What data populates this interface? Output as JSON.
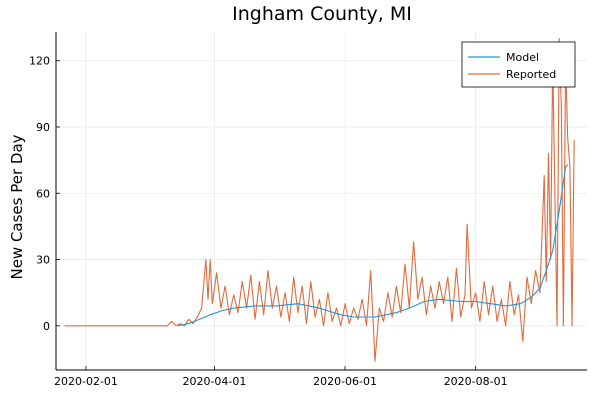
{
  "chart_data": {
    "type": "line",
    "title": "Ingham County, MI",
    "xlabel": "",
    "ylabel": "New Cases Per Day",
    "x_axis": {
      "type": "date",
      "range": [
        "2020-01-18",
        "2020-09-22"
      ],
      "ticks": [
        "2020-02-01",
        "2020-04-01",
        "2020-06-01",
        "2020-08-01"
      ]
    },
    "y_axis": {
      "range": [
        -20,
        133
      ],
      "ticks": [
        0,
        30,
        60,
        90,
        120
      ]
    },
    "grid": true,
    "legend": {
      "position": "top-right"
    },
    "series": [
      {
        "name": "Model",
        "color": "#1f97d6",
        "points": [
          [
            "2020-03-15",
            0
          ],
          [
            "2020-03-20",
            1
          ],
          [
            "2020-03-25",
            3
          ],
          [
            "2020-03-30",
            5
          ],
          [
            "2020-04-05",
            7
          ],
          [
            "2020-04-10",
            8
          ],
          [
            "2020-04-20",
            9
          ],
          [
            "2020-04-30",
            9
          ],
          [
            "2020-05-10",
            10
          ],
          [
            "2020-05-20",
            8
          ],
          [
            "2020-05-30",
            5
          ],
          [
            "2020-06-05",
            4
          ],
          [
            "2020-06-15",
            4
          ],
          [
            "2020-06-25",
            6
          ],
          [
            "2020-07-01",
            8
          ],
          [
            "2020-07-08",
            11
          ],
          [
            "2020-07-15",
            12
          ],
          [
            "2020-07-25",
            11
          ],
          [
            "2020-08-01",
            11
          ],
          [
            "2020-08-08",
            10
          ],
          [
            "2020-08-15",
            9
          ],
          [
            "2020-08-22",
            10
          ],
          [
            "2020-08-27",
            13
          ],
          [
            "2020-08-31",
            17
          ],
          [
            "2020-09-03",
            25
          ],
          [
            "2020-09-06",
            34
          ],
          [
            "2020-09-09",
            52
          ],
          [
            "2020-09-12",
            72
          ],
          [
            "2020-09-13",
            73
          ]
        ]
      },
      {
        "name": "Reported",
        "color": "#e26a3b",
        "points": [
          [
            "2020-01-22",
            0
          ],
          [
            "2020-03-10",
            0
          ],
          [
            "2020-03-12",
            2
          ],
          [
            "2020-03-14",
            0
          ],
          [
            "2020-03-16",
            1
          ],
          [
            "2020-03-18",
            0
          ],
          [
            "2020-03-20",
            3
          ],
          [
            "2020-03-22",
            1
          ],
          [
            "2020-03-24",
            4
          ],
          [
            "2020-03-26",
            8
          ],
          [
            "2020-03-28",
            30
          ],
          [
            "2020-03-29",
            12
          ],
          [
            "2020-03-30",
            30
          ],
          [
            "2020-03-31",
            10
          ],
          [
            "2020-04-02",
            24
          ],
          [
            "2020-04-04",
            8
          ],
          [
            "2020-04-06",
            18
          ],
          [
            "2020-04-08",
            5
          ],
          [
            "2020-04-10",
            14
          ],
          [
            "2020-04-12",
            6
          ],
          [
            "2020-04-14",
            20
          ],
          [
            "2020-04-16",
            8
          ],
          [
            "2020-04-18",
            23
          ],
          [
            "2020-04-20",
            3
          ],
          [
            "2020-04-22",
            20
          ],
          [
            "2020-04-24",
            5
          ],
          [
            "2020-04-26",
            25
          ],
          [
            "2020-04-28",
            8
          ],
          [
            "2020-04-30",
            18
          ],
          [
            "2020-05-02",
            4
          ],
          [
            "2020-05-04",
            15
          ],
          [
            "2020-05-06",
            2
          ],
          [
            "2020-05-08",
            22
          ],
          [
            "2020-05-10",
            6
          ],
          [
            "2020-05-12",
            18
          ],
          [
            "2020-05-14",
            1
          ],
          [
            "2020-05-16",
            20
          ],
          [
            "2020-05-18",
            4
          ],
          [
            "2020-05-20",
            12
          ],
          [
            "2020-05-22",
            0
          ],
          [
            "2020-05-24",
            15
          ],
          [
            "2020-05-26",
            2
          ],
          [
            "2020-05-28",
            8
          ],
          [
            "2020-05-30",
            0
          ],
          [
            "2020-06-01",
            10
          ],
          [
            "2020-06-03",
            1
          ],
          [
            "2020-06-05",
            8
          ],
          [
            "2020-06-07",
            3
          ],
          [
            "2020-06-09",
            12
          ],
          [
            "2020-06-11",
            0
          ],
          [
            "2020-06-13",
            25
          ],
          [
            "2020-06-15",
            -16
          ],
          [
            "2020-06-17",
            8
          ],
          [
            "2020-06-19",
            2
          ],
          [
            "2020-06-21",
            15
          ],
          [
            "2020-06-23",
            4
          ],
          [
            "2020-06-25",
            18
          ],
          [
            "2020-06-27",
            6
          ],
          [
            "2020-06-29",
            28
          ],
          [
            "2020-07-01",
            8
          ],
          [
            "2020-07-03",
            38
          ],
          [
            "2020-07-05",
            12
          ],
          [
            "2020-07-07",
            22
          ],
          [
            "2020-07-09",
            5
          ],
          [
            "2020-07-11",
            18
          ],
          [
            "2020-07-13",
            8
          ],
          [
            "2020-07-15",
            20
          ],
          [
            "2020-07-17",
            10
          ],
          [
            "2020-07-19",
            22
          ],
          [
            "2020-07-21",
            2
          ],
          [
            "2020-07-23",
            26
          ],
          [
            "2020-07-25",
            4
          ],
          [
            "2020-07-27",
            14
          ],
          [
            "2020-07-28",
            46
          ],
          [
            "2020-07-30",
            8
          ],
          [
            "2020-08-01",
            15
          ],
          [
            "2020-08-03",
            2
          ],
          [
            "2020-08-05",
            20
          ],
          [
            "2020-08-07",
            5
          ],
          [
            "2020-08-09",
            18
          ],
          [
            "2020-08-11",
            2
          ],
          [
            "2020-08-13",
            12
          ],
          [
            "2020-08-15",
            0
          ],
          [
            "2020-08-17",
            20
          ],
          [
            "2020-08-19",
            5
          ],
          [
            "2020-08-21",
            14
          ],
          [
            "2020-08-23",
            -7
          ],
          [
            "2020-08-25",
            22
          ],
          [
            "2020-08-27",
            10
          ],
          [
            "2020-08-29",
            25
          ],
          [
            "2020-08-31",
            15
          ],
          [
            "2020-09-02",
            68
          ],
          [
            "2020-09-03",
            20
          ],
          [
            "2020-09-04",
            78
          ],
          [
            "2020-09-05",
            30
          ],
          [
            "2020-09-06",
            120
          ],
          [
            "2020-09-07",
            60
          ],
          [
            "2020-09-08",
            0
          ],
          [
            "2020-09-09",
            130
          ],
          [
            "2020-09-10",
            100
          ],
          [
            "2020-09-11",
            0
          ],
          [
            "2020-09-12",
            120
          ],
          [
            "2020-09-13",
            85
          ],
          [
            "2020-09-14",
            72
          ],
          [
            "2020-09-15",
            0
          ],
          [
            "2020-09-16",
            84
          ]
        ]
      }
    ]
  }
}
